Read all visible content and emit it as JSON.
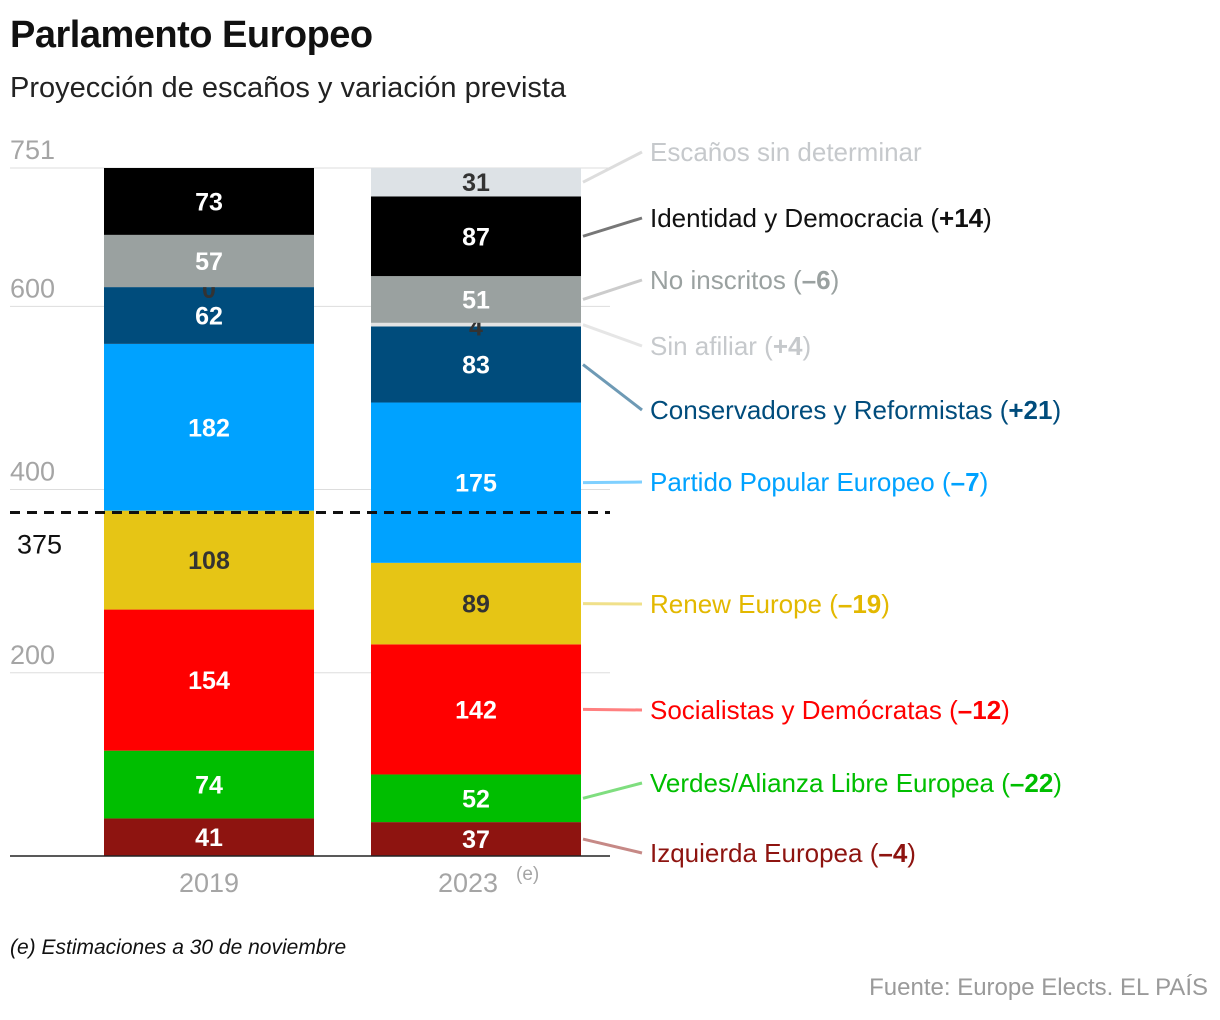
{
  "title": "Parlamento Europeo",
  "subtitle": "Proyección de escaños y variación prevista",
  "footnote": "(e) Estimaciones a 30 de noviembre",
  "source": "Fuente: Europe Elects. EL PAÍS",
  "chart_data": {
    "type": "bar",
    "stacked": true,
    "categories": [
      "2019",
      "2023"
    ],
    "category_notes": [
      "",
      "(e)"
    ],
    "ylim": [
      0,
      751
    ],
    "y_ticks": [
      751,
      600,
      400,
      200
    ],
    "majority_line": {
      "value": 375,
      "label": "375",
      "style": "dashed"
    },
    "grid": true,
    "series": [
      {
        "name": "Izquierda Europea",
        "change": "–4",
        "color": "#8e1410",
        "values": [
          41,
          37
        ],
        "label_color": "#ffffff"
      },
      {
        "name": "Verdes/Alianza Libre Europea",
        "change": "–22",
        "color": "#00be00",
        "values": [
          74,
          52
        ],
        "label_color": "#ffffff"
      },
      {
        "name": "Socialistas y Demócratas",
        "change": "–12",
        "color": "#ff0000",
        "values": [
          154,
          142
        ],
        "label_color": "#ffffff"
      },
      {
        "name": "Renew Europe",
        "change": "–19",
        "color": "#e6c515",
        "values": [
          108,
          89
        ],
        "label_color": "#333333"
      },
      {
        "name": "Partido Popular Europeo",
        "change": "–7",
        "color": "#00a2ff",
        "values": [
          182,
          175
        ],
        "label_color": "#ffffff"
      },
      {
        "name": "Conservadores y Reformistas",
        "change": "+21",
        "color": "#004c7c",
        "values": [
          62,
          83
        ],
        "label_color": "#ffffff"
      },
      {
        "name": "Sin afiliar",
        "change": "+4",
        "color": "#e3e3e3",
        "values": [
          0,
          4
        ],
        "label_color": "#333333"
      },
      {
        "name": "No inscritos",
        "change": "–6",
        "color": "#9aa1a0",
        "values": [
          57,
          51
        ],
        "label_color": "#ffffff"
      },
      {
        "name": "Identidad y Democracia",
        "change": "+14",
        "color": "#000000",
        "values": [
          73,
          87
        ],
        "label_color": "#ffffff"
      },
      {
        "name": "Escaños sin determinar",
        "change": "",
        "color": "#dde2e6",
        "values": [
          0,
          31
        ],
        "label_color": "#333333"
      }
    ],
    "legend_colors": {
      "Escaños sin determinar": "#c6c9cc",
      "Identidad y Democracia": "#111111",
      "No inscritos": "#9aa1a0",
      "Sin afiliar": "#c6c9cc",
      "Conservadores y Reformistas": "#004c7c",
      "Partido Popular Europeo": "#00a2ff",
      "Renew Europe": "#e3b800",
      "Socialistas y Demócratas": "#ff0000",
      "Verdes/Alianza Libre Europea": "#00be00",
      "Izquierda Europea": "#8e1410"
    },
    "legend_connector_colors": {
      "Escaños sin determinar": "#dddddd",
      "Identidad y Democracia": "#777777",
      "No inscritos": "#cccccc",
      "Sin afiliar": "#e6e6e6",
      "Conservadores y Reformistas": "#6e9ab5",
      "Partido Popular Europeo": "#7fd0ff",
      "Renew Europe": "#f0e08a",
      "Socialistas y Demócratas": "#ff8080",
      "Verdes/Alianza Libre Europea": "#7fde7f",
      "Izquierda Europea": "#c68986"
    },
    "show_zero_labels": [
      true,
      false
    ]
  }
}
